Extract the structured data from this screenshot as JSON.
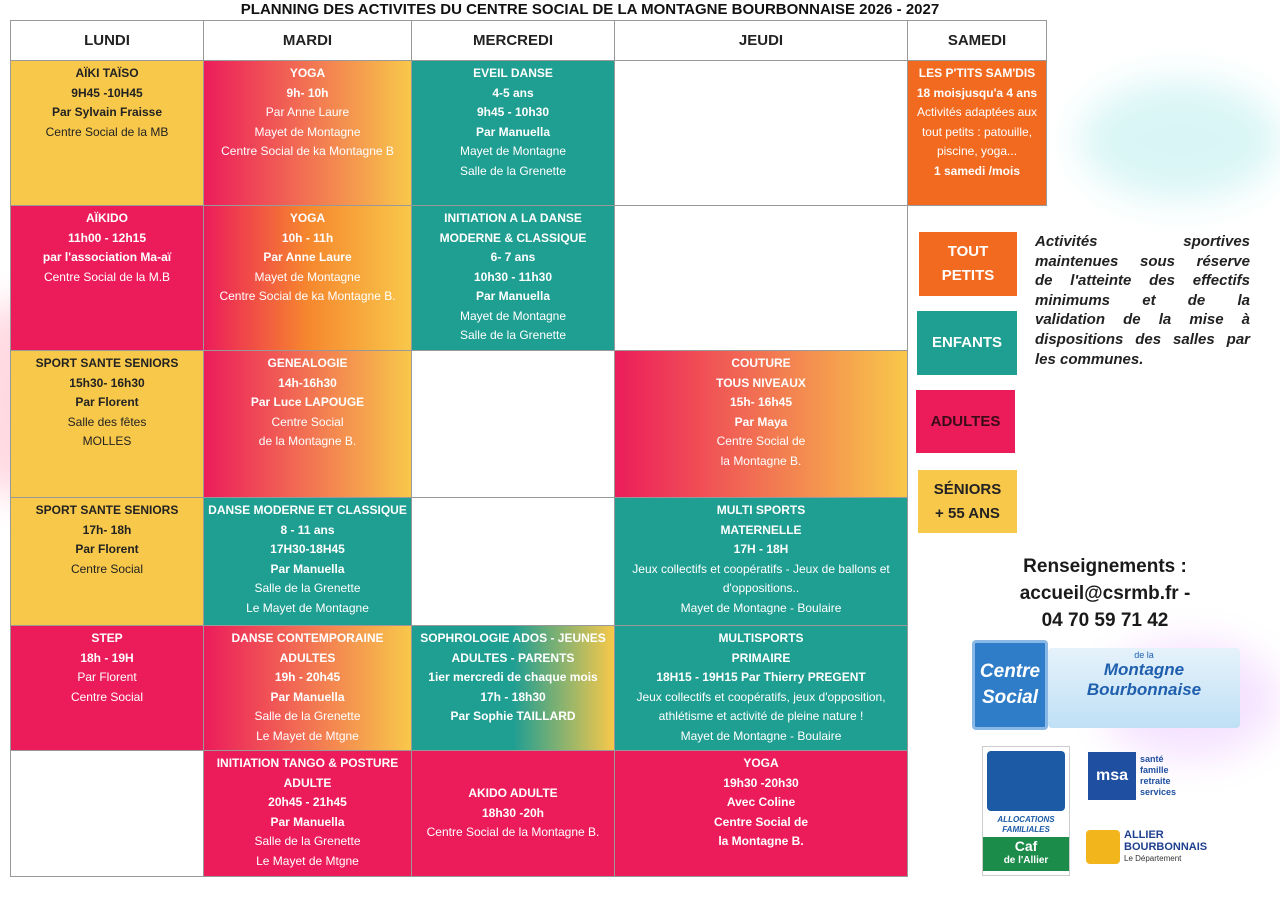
{
  "header": {
    "title": "PLANNING DES ACTIVITES DU CENTRE SOCIAL DE LA MONTAGNE BOURBONNAISE 2026 - 2027"
  },
  "table": {
    "columns": [
      "LUNDI",
      "MARDI",
      "MERCREDI",
      "JEUDI",
      "SAMEDI"
    ],
    "rows": [
      [
        {
          "colors": [
            "#f8c84a"
          ],
          "lines": [
            "AÏKI TAÏSO",
            "9H45 -10H45",
            "Par Sylvain Fraisse",
            "Centre Social de la MB"
          ],
          "bold": [
            true,
            true,
            true,
            false
          ]
        },
        {
          "colors": [
            "#ec1c5b",
            "#f8c84a"
          ],
          "lines": [
            "YOGA",
            "9h- 10h",
            "Par Anne Laure",
            "Mayet de Montagne",
            "Centre Social de ka Montagne B"
          ],
          "bold": [
            true,
            true,
            false,
            false,
            false
          ]
        },
        {
          "colors": [
            "#1f9e92"
          ],
          "lines": [
            "EVEIL DANSE",
            "4-5 ans",
            "9h45 - 10h30",
            "Par Manuella",
            "Mayet de Montagne",
            "Salle de la Grenette"
          ],
          "bold": [
            true,
            true,
            true,
            true,
            false,
            false
          ]
        },
        null,
        {
          "colors": [
            "#f26a1f"
          ],
          "lines": [
            "LES P'TITS SAM'DIS",
            "18 moisjusqu'a 4 ans",
            "Activités adaptées aux",
            "tout petits : patouille,",
            "piscine, yoga...",
            "1 samedi /mois"
          ],
          "bold": [
            true,
            true,
            false,
            false,
            false,
            true
          ]
        }
      ],
      [
        {
          "colors": [
            "#ec1c5b"
          ],
          "lines": [
            "AÏKIDO",
            "11h00 - 12h15",
            "par l'association Ma-aï",
            "Centre Social de la M.B"
          ],
          "bold": [
            true,
            true,
            true,
            false
          ]
        },
        {
          "colors": [
            "#ec1c5b",
            "#f6872e",
            "#f8c84a"
          ],
          "lines": [
            "YOGA",
            "10h - 11h",
            "Par Anne Laure",
            "Mayet de Montagne",
            "Centre Social de ka Montagne B."
          ],
          "bold": [
            true,
            true,
            true,
            false,
            false
          ]
        },
        {
          "colors": [
            "#1f9e92"
          ],
          "lines": [
            "INITIATION  A LA DANSE",
            "MODERNE & CLASSIQUE",
            "6- 7 ans",
            "10h30 - 11h30",
            "Par Manuella",
            "Mayet de Montagne",
            "Salle de la Grenette"
          ],
          "bold": [
            true,
            true,
            true,
            true,
            true,
            false,
            false
          ]
        },
        null,
        null
      ],
      [
        {
          "colors": [
            "#f8c84a"
          ],
          "lines": [
            "SPORT SANTE SENIORS",
            "15h30- 16h30",
            "Par Florent",
            "Salle des fêtes",
            "MOLLES"
          ],
          "bold": [
            true,
            true,
            true,
            false,
            false
          ]
        },
        {
          "colors": [
            "#ec1c5b",
            "#f8c84a"
          ],
          "lines": [
            "GENEALOGIE",
            "14h-16h30",
            "Par Luce LAPOUGE",
            "Centre Social",
            "de la Montagne B."
          ],
          "bold": [
            true,
            true,
            true,
            false,
            false
          ]
        },
        null,
        {
          "colors": [
            "#ec1c5b",
            "#f8c84a"
          ],
          "lines": [
            "COUTURE",
            "TOUS NIVEAUX",
            "15h- 16h45",
            "Par Maya",
            "Centre Social de",
            "la Montagne B."
          ],
          "bold": [
            true,
            true,
            true,
            true,
            false,
            false
          ]
        },
        null
      ],
      [
        {
          "colors": [
            "#f8c84a"
          ],
          "lines": [
            "SPORT SANTE SENIORS",
            "17h- 18h",
            "Par Florent",
            "Centre Social"
          ],
          "bold": [
            true,
            true,
            true,
            false
          ]
        },
        {
          "colors": [
            "#1f9e92"
          ],
          "lines": [
            "DANSE MODERNE ET CLASSIQUE",
            "8 - 11 ans",
            "17H30-18H45",
            "Par Manuella",
            "Salle de la Grenette",
            "Le Mayet de Montagne"
          ],
          "bold": [
            true,
            true,
            true,
            true,
            false,
            false
          ]
        },
        null,
        {
          "colors": [
            "#1f9e92"
          ],
          "lines": [
            "MULTI SPORTS",
            "MATERNELLE",
            "17H - 18H",
            "Jeux collectifs et coopératifs - Jeux de ballons et",
            "d'oppositions..",
            "Mayet de Montagne - Boulaire"
          ],
          "bold": [
            true,
            true,
            true,
            false,
            false,
            false
          ]
        },
        null
      ],
      [
        {
          "colors": [
            "#ec1c5b"
          ],
          "lines": [
            "STEP",
            "18h - 19H",
            "Par Florent",
            "Centre Social"
          ],
          "bold": [
            true,
            true,
            false,
            false
          ]
        },
        {
          "colors": [
            "#ec1c5b",
            "#f8c84a"
          ],
          "lines": [
            "DANSE  CONTEMPORAINE",
            "ADULTES",
            "19h - 20h45",
            "Par Manuella",
            "Salle de la Grenette",
            "Le Mayet de Mtgne"
          ],
          "bold": [
            true,
            true,
            true,
            true,
            false,
            false
          ]
        },
        {
          "colors": [
            "#1f9e92",
            "#1f9e92",
            "#f8c84a"
          ],
          "lines": [
            "SOPHROLOGIE ADOS - JEUNES",
            "ADULTES - PARENTS",
            "1ier mercredi de chaque mois",
            "17h - 18h30",
            "Par Sophie TAILLARD"
          ],
          "bold": [
            true,
            true,
            true,
            true,
            true
          ]
        },
        {
          "colors": [
            "#1f9e92"
          ],
          "lines": [
            "MULTISPORTS",
            "PRIMAIRE",
            "18H15 - 19H15  Par Thierry PREGENT",
            "Jeux collectifs et coopératifs, jeux d'opposition,",
            "athlétisme et activité de pleine nature !",
            "Mayet de Montagne - Boulaire"
          ],
          "bold": [
            true,
            true,
            true,
            false,
            false,
            false
          ]
        },
        null
      ],
      [
        null,
        {
          "colors": [
            "#ec1c5b"
          ],
          "lines": [
            "INITIATION TANGO & POSTURE",
            "ADULTE",
            "20h45 - 21h45",
            "Par Manuella",
            "Salle de la Grenette",
            "Le Mayet de Mtgne"
          ],
          "bold": [
            true,
            true,
            true,
            true,
            false,
            false
          ]
        },
        {
          "colors": [
            "#ec1c5b"
          ],
          "valign": "middle",
          "lines": [
            "AKIDO ADULTE",
            "18h30 -20h",
            "Centre Social de la Montagne B."
          ],
          "bold": [
            true,
            true,
            false
          ]
        },
        {
          "colors": [
            "#ec1c5b"
          ],
          "lines": [
            "YOGA",
            "19h30 -20h30",
            "Avec Coline",
            "Centre Social de",
            "la Montagne B."
          ],
          "bold": [
            true,
            true,
            true,
            true,
            true
          ]
        },
        null
      ]
    ]
  },
  "legend": [
    {
      "lines": [
        "TOUT",
        "PETITS"
      ],
      "color": "#f26a1f",
      "text_color": "#ffffff"
    },
    {
      "lines": [
        "ENFANTS"
      ],
      "color": "#1f9e92",
      "text_color": "#ffffff"
    },
    {
      "lines": [
        "ADULTES"
      ],
      "color": "#ec1c5b",
      "text_color": "#3a0b18"
    },
    {
      "lines": [
        "SÉNIORS",
        "+ 55 ANS"
      ],
      "color": "#f8c84a",
      "text_color": "#222222"
    }
  ],
  "note": {
    "lines": [
      "Activités sportives",
      "maintenues sous réserve",
      "de l'atteinte des effectifs",
      "minimums et de la",
      "validation de la mise à",
      "dispositions des salles par",
      "les communes."
    ]
  },
  "contact": {
    "title": "Renseignements :",
    "email": "accueil@csrmb.fr -",
    "phone": "04 70 59 71 42"
  },
  "logos": {
    "centre_social": {
      "name": "Centre Social",
      "place": "Montagne Bourbonnaise",
      "prefix": "de la"
    },
    "caf": {
      "line1": "ALLOCATIONS",
      "line2": "FAMILIALES",
      "name": "Caf",
      "place": "de l'Allier"
    },
    "msa": {
      "name": "msa",
      "lines": [
        "santé",
        "famille",
        "retraite",
        "services"
      ]
    },
    "allier": {
      "line1": "ALLIER",
      "line2": "BOURBONNAIS",
      "sub": "Le Département"
    }
  }
}
